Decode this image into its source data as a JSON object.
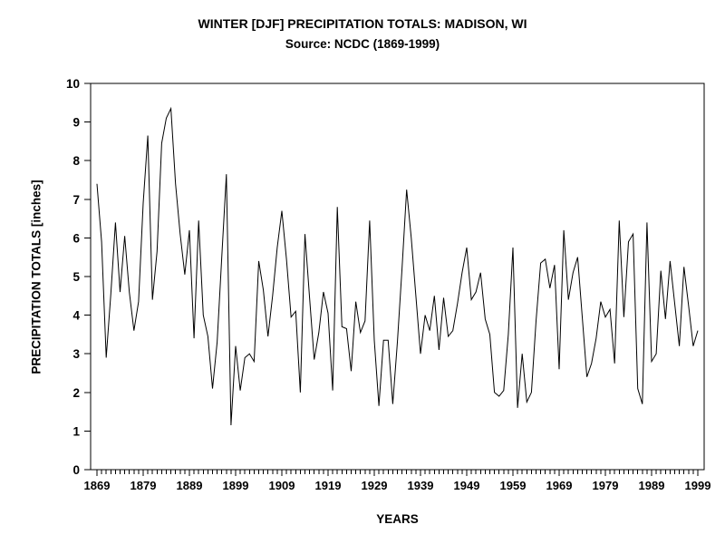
{
  "chart_data": {
    "type": "line",
    "title": "WINTER [DJF] PRECIPITATION TOTALS: MADISON, WI",
    "subtitle": "Source: NCDC (1869-1999)",
    "xlabel": "YEARS",
    "ylabel": "PRECIPITATION TOTALS [inches]",
    "line_color": "#000000",
    "background_color": "#ffffff",
    "grid": false,
    "legend": false,
    "ylim": [
      0,
      10
    ],
    "ytick_step": 1,
    "xtick_labels": [
      "1869",
      "1879",
      "1889",
      "1899",
      "1909",
      "1919",
      "1929",
      "1939",
      "1949",
      "1959",
      "1969",
      "1979",
      "1989",
      "1999"
    ],
    "x_start": 1869,
    "x_end": 1999,
    "x": [
      1869,
      1870,
      1871,
      1872,
      1873,
      1874,
      1875,
      1876,
      1877,
      1878,
      1879,
      1880,
      1881,
      1882,
      1883,
      1884,
      1885,
      1886,
      1887,
      1888,
      1889,
      1890,
      1891,
      1892,
      1893,
      1894,
      1895,
      1896,
      1897,
      1898,
      1899,
      1900,
      1901,
      1902,
      1903,
      1904,
      1905,
      1906,
      1907,
      1908,
      1909,
      1910,
      1911,
      1912,
      1913,
      1914,
      1915,
      1916,
      1917,
      1918,
      1919,
      1920,
      1921,
      1922,
      1923,
      1924,
      1925,
      1926,
      1927,
      1928,
      1929,
      1930,
      1931,
      1932,
      1933,
      1934,
      1935,
      1936,
      1937,
      1938,
      1939,
      1940,
      1941,
      1942,
      1943,
      1944,
      1945,
      1946,
      1947,
      1948,
      1949,
      1950,
      1951,
      1952,
      1953,
      1954,
      1955,
      1956,
      1957,
      1958,
      1959,
      1960,
      1961,
      1962,
      1963,
      1964,
      1965,
      1966,
      1967,
      1968,
      1969,
      1970,
      1971,
      1972,
      1973,
      1974,
      1975,
      1976,
      1977,
      1978,
      1979,
      1980,
      1981,
      1982,
      1983,
      1984,
      1985,
      1986,
      1987,
      1988,
      1989,
      1990,
      1991,
      1992,
      1993,
      1994,
      1995,
      1996,
      1997,
      1998,
      1999
    ],
    "values": [
      7.4,
      5.9,
      2.9,
      4.55,
      6.4,
      4.6,
      6.05,
      4.6,
      3.6,
      4.35,
      6.9,
      8.65,
      4.4,
      5.65,
      8.45,
      9.1,
      9.35,
      7.4,
      6.1,
      5.05,
      6.2,
      3.4,
      6.45,
      4.0,
      3.45,
      2.1,
      3.3,
      5.5,
      7.65,
      1.15,
      3.2,
      2.05,
      2.9,
      3.0,
      2.8,
      5.4,
      4.65,
      3.45,
      4.5,
      5.75,
      6.7,
      5.45,
      3.95,
      4.1,
      2.0,
      6.1,
      4.45,
      2.85,
      3.55,
      4.6,
      4.05,
      2.05,
      6.8,
      3.7,
      3.65,
      2.55,
      4.35,
      3.55,
      3.85,
      6.45,
      3.35,
      1.65,
      3.35,
      3.35,
      1.7,
      3.3,
      5.2,
      7.25,
      6.0,
      4.5,
      3.0,
      4.0,
      3.6,
      4.5,
      3.1,
      4.45,
      3.45,
      3.6,
      4.3,
      5.1,
      5.75,
      4.4,
      4.6,
      5.1,
      3.9,
      3.5,
      2.0,
      1.9,
      2.05,
      3.5,
      5.75,
      1.6,
      3.0,
      1.75,
      2.0,
      3.85,
      5.35,
      5.45,
      4.7,
      5.3,
      2.6,
      6.2,
      4.4,
      5.1,
      5.5,
      3.95,
      2.4,
      2.75,
      3.4,
      4.35,
      3.95,
      4.15,
      2.75,
      6.45,
      3.95,
      5.9,
      6.1,
      2.1,
      1.7,
      6.4,
      2.8,
      3.0,
      5.15,
      3.9,
      5.4,
      4.3,
      3.2,
      5.25,
      4.25,
      3.2,
      3.6
    ]
  }
}
